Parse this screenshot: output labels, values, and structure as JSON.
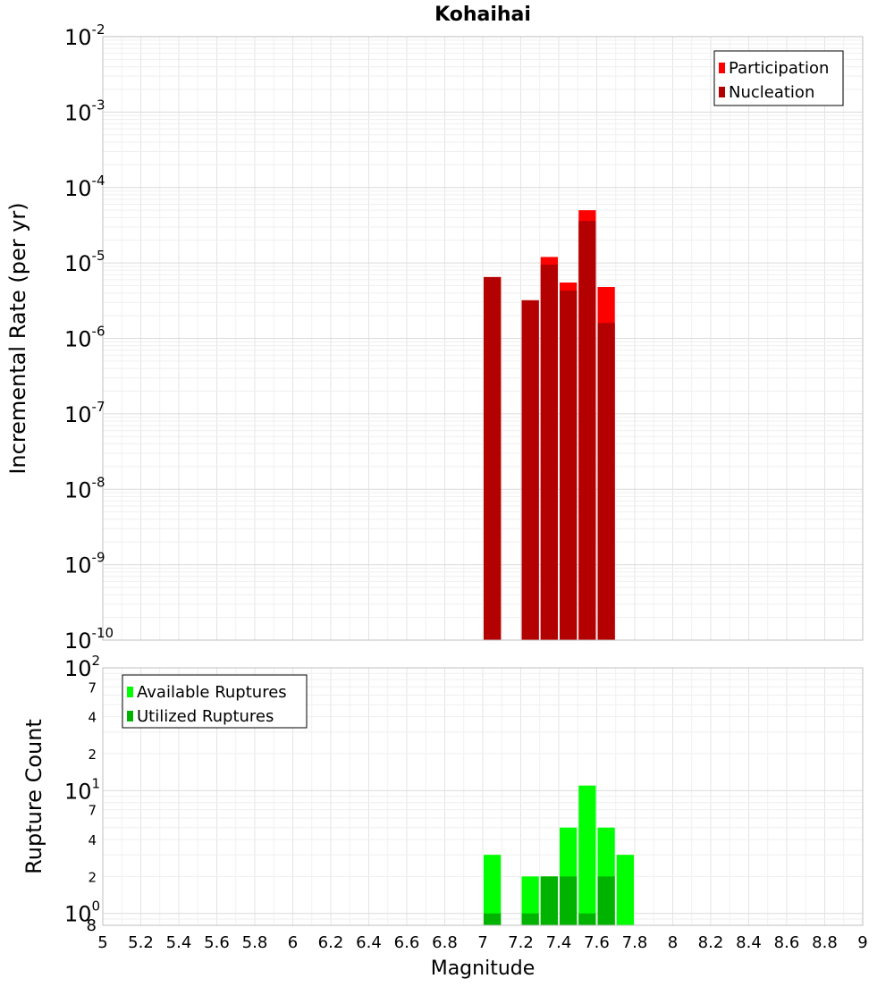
{
  "chart_data": [
    {
      "type": "bar",
      "title": "Kohaihai",
      "ylabel": "Incremental Rate (per yr)",
      "xlabel": "",
      "y_scale": "log",
      "ylim": [
        1e-10,
        0.01
      ],
      "xlim": [
        5,
        9
      ],
      "y_tick_exponents": [
        "-10",
        "-9",
        "-8",
        "-7",
        "-6",
        "-5",
        "-4",
        "-3",
        "-2"
      ],
      "y_tick_base": "10",
      "grid": true,
      "legend_position": "top-right",
      "bar_width": 0.1,
      "series": [
        {
          "name": "Participation",
          "color": "#ff0000",
          "points": [
            {
              "x": 7.05,
              "y": 6.5e-06
            },
            {
              "x": 7.25,
              "y": 3.2e-06
            },
            {
              "x": 7.35,
              "y": 1.2e-05
            },
            {
              "x": 7.45,
              "y": 5.5e-06
            },
            {
              "x": 7.55,
              "y": 5e-05
            },
            {
              "x": 7.65,
              "y": 4.8e-06
            }
          ]
        },
        {
          "name": "Nucleation",
          "color": "#b30000",
          "points": [
            {
              "x": 7.05,
              "y": 6.5e-06
            },
            {
              "x": 7.25,
              "y": 3.2e-06
            },
            {
              "x": 7.35,
              "y": 9.5e-06
            },
            {
              "x": 7.45,
              "y": 4.3e-06
            },
            {
              "x": 7.55,
              "y": 3.6e-05
            },
            {
              "x": 7.65,
              "y": 1.6e-06
            }
          ]
        }
      ]
    },
    {
      "type": "bar",
      "title": "",
      "ylabel": "Rupture Count",
      "xlabel": "Magnitude",
      "y_scale": "log",
      "ylim": [
        0.8,
        100
      ],
      "xlim": [
        5,
        9
      ],
      "x_ticks": [
        "5",
        "5.2",
        "5.4",
        "5.6",
        "5.8",
        "6",
        "6.2",
        "6.4",
        "6.6",
        "6.8",
        "7",
        "7.2",
        "7.4",
        "7.6",
        "7.8",
        "8",
        "8.2",
        "8.4",
        "8.6",
        "8.8",
        "9"
      ],
      "y_major_ticks": [
        {
          "value": 1,
          "base": "10",
          "exp": "0"
        },
        {
          "value": 10,
          "base": "10",
          "exp": "1"
        },
        {
          "value": 100,
          "base": "10",
          "exp": "2"
        }
      ],
      "y_minor_ticks": [
        {
          "value": 0.8,
          "label": "8"
        },
        {
          "value": 2,
          "label": "2"
        },
        {
          "value": 4,
          "label": "4"
        },
        {
          "value": 7,
          "label": "7"
        },
        {
          "value": 20,
          "label": "2"
        },
        {
          "value": 40,
          "label": "4"
        },
        {
          "value": 70,
          "label": "7"
        }
      ],
      "grid": true,
      "legend_position": "top-left",
      "bar_width": 0.1,
      "series": [
        {
          "name": "Available Ruptures",
          "color": "#00ff00",
          "points": [
            {
              "x": 7.05,
              "y": 3
            },
            {
              "x": 7.25,
              "y": 2
            },
            {
              "x": 7.35,
              "y": 2
            },
            {
              "x": 7.45,
              "y": 5
            },
            {
              "x": 7.55,
              "y": 11
            },
            {
              "x": 7.65,
              "y": 5
            },
            {
              "x": 7.75,
              "y": 3
            }
          ]
        },
        {
          "name": "Utilized Ruptures",
          "color": "#00b300",
          "points": [
            {
              "x": 7.05,
              "y": 1
            },
            {
              "x": 7.25,
              "y": 1
            },
            {
              "x": 7.35,
              "y": 2
            },
            {
              "x": 7.45,
              "y": 2
            },
            {
              "x": 7.55,
              "y": 1
            },
            {
              "x": 7.65,
              "y": 2
            }
          ]
        }
      ]
    }
  ]
}
